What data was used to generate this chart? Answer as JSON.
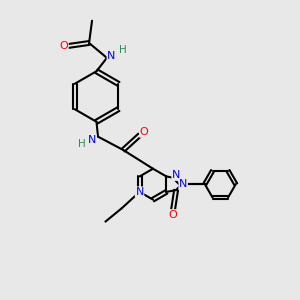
{
  "bg_color": "#e8e8e8",
  "atom_colors": {
    "N": "#0000ff",
    "O": "#ff0000",
    "H": "#2e8b57"
  },
  "bond_color": "#000000",
  "bond_width": 1.5
}
